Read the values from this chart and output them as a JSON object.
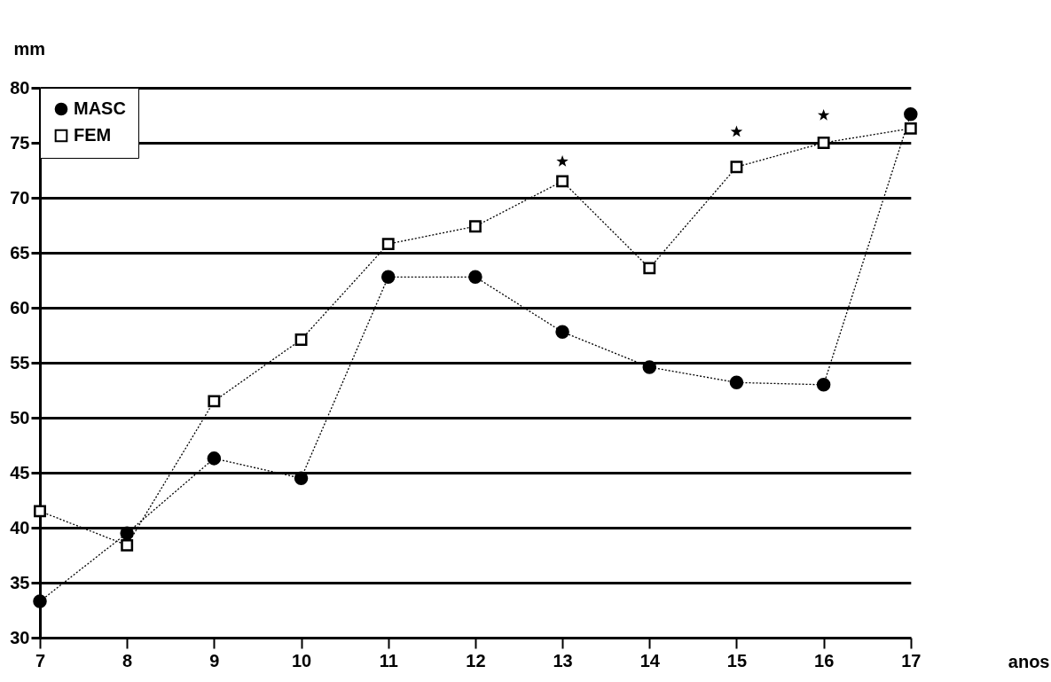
{
  "chart_data": {
    "type": "line",
    "xlabel": "anos",
    "ylabel": "mm",
    "categories": [
      "7",
      "8",
      "9",
      "10",
      "11",
      "12",
      "13",
      "14",
      "15",
      "16",
      "17"
    ],
    "ylim": [
      30,
      80
    ],
    "yticks": [
      30,
      35,
      40,
      45,
      50,
      55,
      60,
      65,
      70,
      75,
      80
    ],
    "grid": "y",
    "legend": "top left",
    "line_style": "dotted",
    "series": [
      {
        "name": "MASC",
        "color": "#000000",
        "marker": "circle",
        "values": [
          33.3,
          39.5,
          46.3,
          44.5,
          62.8,
          62.8,
          57.8,
          54.6,
          53.2,
          53.0,
          77.6
        ]
      },
      {
        "name": "FEM",
        "color": "#000000",
        "marker": "square",
        "values": [
          41.5,
          38.4,
          51.5,
          57.1,
          65.8,
          67.4,
          71.5,
          63.6,
          72.8,
          75.0,
          76.3
        ]
      },
      {
        "type": "scatter",
        "color": "#000000",
        "marker": "star",
        "values": [
          null,
          null,
          null,
          null,
          null,
          null,
          73.3,
          null,
          76.0,
          77.5,
          null
        ]
      }
    ]
  }
}
